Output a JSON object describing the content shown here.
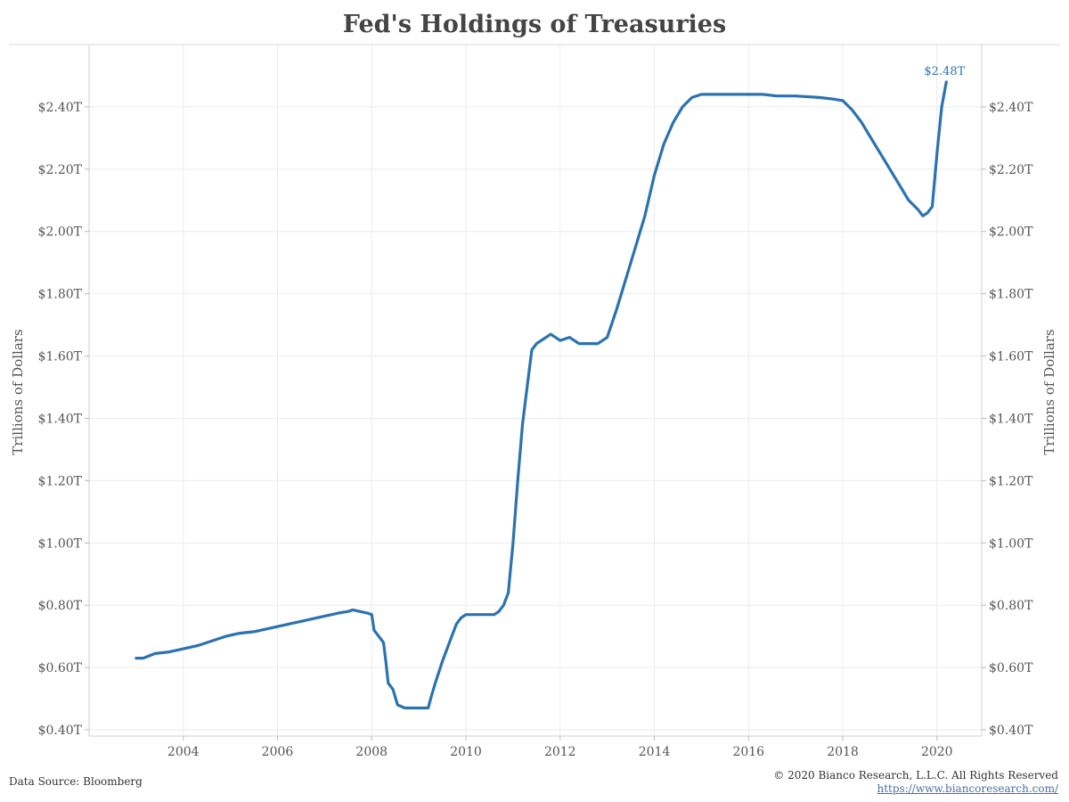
{
  "chart_data": {
    "type": "line",
    "title": "Fed's Holdings of Treasuries",
    "ylabel_left": "Trillions of Dollars",
    "ylabel_right": "Trillions of Dollars",
    "xlim": [
      2002.0,
      2020.95
    ],
    "ylim": [
      0.38,
      2.6
    ],
    "x_ticks": [
      2004,
      2006,
      2008,
      2010,
      2012,
      2014,
      2016,
      2018,
      2020
    ],
    "x_tick_labels": [
      "2004",
      "2006",
      "2008",
      "2010",
      "2012",
      "2014",
      "2016",
      "2018",
      "2020"
    ],
    "y_ticks": [
      0.4,
      0.6,
      0.8,
      1.0,
      1.2,
      1.4,
      1.6,
      1.8,
      2.0,
      2.2,
      2.4
    ],
    "y_tick_labels": [
      "$0.40T",
      "$0.60T",
      "$0.80T",
      "$1.00T",
      "$1.20T",
      "$1.40T",
      "$1.60T",
      "$1.80T",
      "$2.00T",
      "$2.20T",
      "$2.40T"
    ],
    "grid": true,
    "line_color": "#2b72b0",
    "end_label": "$2.48T",
    "series": [
      {
        "x": [
          2003.0,
          2003.15,
          2003.4,
          2003.7,
          2004.0,
          2004.3,
          2004.6,
          2004.9,
          2005.2,
          2005.5,
          2005.8,
          2006.1,
          2006.4,
          2006.7,
          2007.0,
          2007.3,
          2007.5,
          2007.6,
          2007.9,
          2008.0,
          2008.05,
          2008.15,
          2008.25,
          2008.3,
          2008.35,
          2008.45,
          2008.55,
          2008.7,
          2009.0,
          2009.2,
          2009.25,
          2009.35,
          2009.5,
          2009.7,
          2009.8,
          2009.9,
          2010.0,
          2010.3,
          2010.6,
          2010.7,
          2010.8,
          2010.9,
          2011.0,
          2011.1,
          2011.2,
          2011.3,
          2011.4,
          2011.5,
          2011.6,
          2011.7,
          2011.8,
          2011.9,
          2012.0,
          2012.2,
          2012.4,
          2012.6,
          2012.8,
          2013.0,
          2013.2,
          2013.4,
          2013.6,
          2013.8,
          2014.0,
          2014.2,
          2014.4,
          2014.6,
          2014.8,
          2015.0,
          2015.5,
          2016.0,
          2016.3,
          2016.6,
          2017.0,
          2017.5,
          2017.8,
          2018.0,
          2018.2,
          2018.4,
          2018.6,
          2018.8,
          2019.0,
          2019.2,
          2019.4,
          2019.6,
          2019.7,
          2019.8,
          2019.9,
          2020.0,
          2020.1,
          2020.2
        ],
        "y": [
          0.63,
          0.63,
          0.645,
          0.65,
          0.66,
          0.67,
          0.685,
          0.7,
          0.71,
          0.715,
          0.725,
          0.735,
          0.745,
          0.755,
          0.765,
          0.775,
          0.78,
          0.785,
          0.775,
          0.77,
          0.72,
          0.7,
          0.68,
          0.62,
          0.55,
          0.53,
          0.48,
          0.47,
          0.47,
          0.47,
          0.5,
          0.55,
          0.62,
          0.7,
          0.74,
          0.76,
          0.77,
          0.77,
          0.77,
          0.78,
          0.8,
          0.84,
          1.0,
          1.2,
          1.38,
          1.5,
          1.62,
          1.64,
          1.65,
          1.66,
          1.67,
          1.66,
          1.65,
          1.66,
          1.64,
          1.64,
          1.64,
          1.66,
          1.75,
          1.85,
          1.95,
          2.05,
          2.18,
          2.28,
          2.35,
          2.4,
          2.43,
          2.44,
          2.44,
          2.44,
          2.44,
          2.435,
          2.435,
          2.43,
          2.425,
          2.42,
          2.39,
          2.35,
          2.3,
          2.25,
          2.2,
          2.15,
          2.1,
          2.07,
          2.05,
          2.06,
          2.08,
          2.25,
          2.4,
          2.48
        ]
      }
    ]
  },
  "footer": {
    "source": "Data Source: Bloomberg",
    "copyright": "© 2020 Bianco Research, L.L.C. All Rights Reserved",
    "url": "https://www.biancoresearch.com/"
  }
}
